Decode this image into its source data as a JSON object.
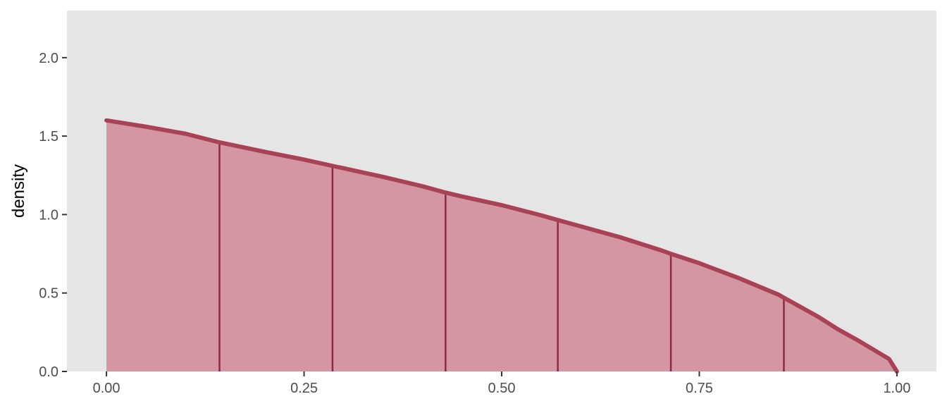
{
  "chart_data": {
    "type": "area",
    "title": "",
    "xlabel": "",
    "ylabel": "density",
    "xlim": [
      -0.05,
      1.05
    ],
    "ylim": [
      0,
      2.3
    ],
    "x_ticks": [
      {
        "value": 0.0,
        "label": "0.00"
      },
      {
        "value": 0.25,
        "label": "0.25"
      },
      {
        "value": 0.5,
        "label": "0.50"
      },
      {
        "value": 0.75,
        "label": "0.75"
      },
      {
        "value": 1.0,
        "label": "1.00"
      }
    ],
    "y_ticks": [
      {
        "value": 0.0,
        "label": "0.0"
      },
      {
        "value": 0.5,
        "label": "0.5"
      },
      {
        "value": 1.0,
        "label": "1.0"
      },
      {
        "value": 1.5,
        "label": "1.5"
      },
      {
        "value": 2.0,
        "label": "2.0"
      }
    ],
    "curve": {
      "x": [
        0.0,
        0.05,
        0.1,
        0.143,
        0.2,
        0.25,
        0.286,
        0.3,
        0.35,
        0.4,
        0.429,
        0.45,
        0.5,
        0.55,
        0.571,
        0.6,
        0.65,
        0.7,
        0.714,
        0.75,
        0.8,
        0.85,
        0.857,
        0.9,
        0.925,
        0.95,
        0.97,
        0.99,
        1.0
      ],
      "y": [
        1.6,
        1.56,
        1.515,
        1.46,
        1.4,
        1.35,
        1.31,
        1.295,
        1.24,
        1.18,
        1.14,
        1.115,
        1.06,
        0.995,
        0.965,
        0.925,
        0.855,
        0.775,
        0.75,
        0.69,
        0.595,
        0.49,
        0.47,
        0.35,
        0.27,
        0.2,
        0.14,
        0.08,
        0.0
      ]
    },
    "segment_x": [
      0.143,
      0.286,
      0.429,
      0.571,
      0.714,
      0.857
    ],
    "colors": {
      "panel_background": "#e5e5e5",
      "fill": "#d596a3",
      "curve": "#a84256",
      "segment": "#8b2a40",
      "tick_text": "#4d4d4d",
      "tick_mark": "#333333"
    },
    "grid": false,
    "legend": "none"
  }
}
